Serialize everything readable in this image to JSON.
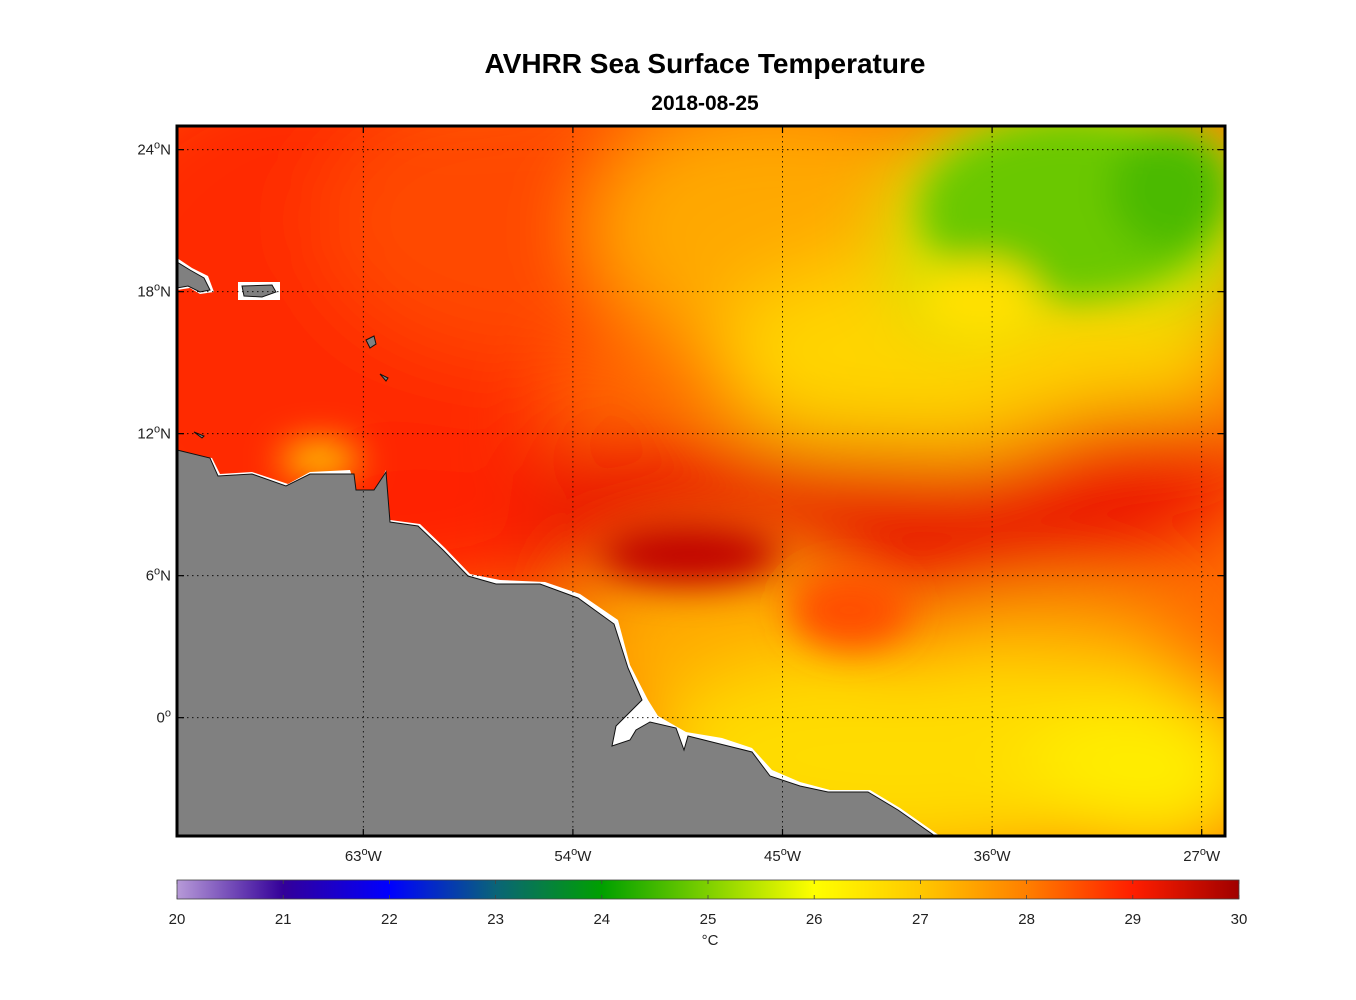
{
  "title": "AVHRR Sea Surface Temperature",
  "date": "2018-08-25",
  "map": {
    "lon_range": [
      -71,
      -26
    ],
    "lat_range": [
      -5,
      25
    ],
    "lon_ticks": [
      {
        "value": -63,
        "deg": "63",
        "hem": "W"
      },
      {
        "value": -54,
        "deg": "54",
        "hem": "W"
      },
      {
        "value": -45,
        "deg": "45",
        "hem": "W"
      },
      {
        "value": -36,
        "deg": "36",
        "hem": "W"
      },
      {
        "value": -27,
        "deg": "27",
        "hem": "W"
      }
    ],
    "lat_ticks": [
      {
        "value": 24,
        "deg": "24",
        "hem": "N"
      },
      {
        "value": 18,
        "deg": "18",
        "hem": "N"
      },
      {
        "value": 12,
        "deg": "12",
        "hem": "N"
      },
      {
        "value": 6,
        "deg": "6",
        "hem": "N"
      },
      {
        "value": 0,
        "deg": "0",
        "hem": ""
      }
    ],
    "land_color": "#808080",
    "features": [
      "South American coast",
      "Caribbean islands",
      "Lesser Antilles"
    ]
  },
  "colorbar": {
    "min": 20,
    "max": 30,
    "ticks": [
      "20",
      "21",
      "22",
      "23",
      "24",
      "25",
      "26",
      "27",
      "28",
      "29",
      "30"
    ],
    "unit": "°C",
    "stops": [
      {
        "value": 20,
        "color": "#b79ad8"
      },
      {
        "value": 21,
        "color": "#330099"
      },
      {
        "value": 22,
        "color": "#0000ff"
      },
      {
        "value": 23,
        "color": "#0a6478"
      },
      {
        "value": 24,
        "color": "#00a000"
      },
      {
        "value": 25,
        "color": "#7fd000"
      },
      {
        "value": 26,
        "color": "#ffff00"
      },
      {
        "value": 27,
        "color": "#ffc800"
      },
      {
        "value": 28,
        "color": "#ff7f00"
      },
      {
        "value": 29,
        "color": "#ff1e00"
      },
      {
        "value": 30,
        "color": "#a00000"
      }
    ]
  }
}
